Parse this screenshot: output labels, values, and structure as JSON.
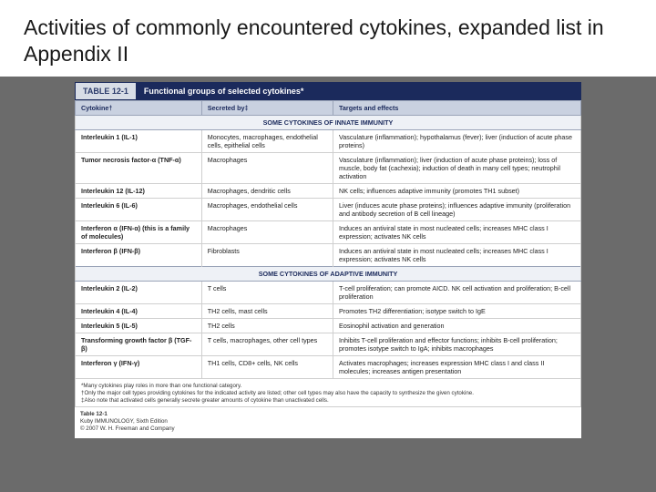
{
  "slide": {
    "title": "Activities of commonly encountered cytokines, expanded list in Appendix II"
  },
  "table": {
    "number": "TABLE 12-1",
    "title": "Functional groups of selected cytokines*",
    "columns": [
      "Cytokine†",
      "Secreted by‡",
      "Targets and effects"
    ],
    "sections": [
      {
        "heading": "SOME CYTOKINES OF INNATE IMMUNITY",
        "rows": [
          {
            "cytokine": "Interleukin 1 (IL-1)",
            "secreted": "Monocytes, macrophages, endothelial cells, epithelial cells",
            "targets": "Vasculature (inflammation); hypothalamus (fever); liver (induction of acute phase proteins)"
          },
          {
            "cytokine": "Tumor necrosis factor-α (TNF-α)",
            "secreted": "Macrophages",
            "targets": "Vasculature (inflammation); liver (induction of acute phase proteins); loss of muscle, body fat (cachexia); induction of death in many cell types; neutrophil activation"
          },
          {
            "cytokine": "Interleukin 12 (IL-12)",
            "secreted": "Macrophages, dendritic cells",
            "targets": "NK cells; influences adaptive immunity (promotes TH1 subset)"
          },
          {
            "cytokine": "Interleukin 6 (IL-6)",
            "secreted": "Macrophages, endothelial cells",
            "targets": "Liver (induces acute phase proteins); influences adaptive immunity (proliferation and antibody secretion of B cell lineage)"
          },
          {
            "cytokine": "Interferon α (IFN-α) (this is a family of molecules)",
            "secreted": "Macrophages",
            "targets": "Induces an antiviral state in most nucleated cells; increases MHC class I expression; activates NK cells"
          },
          {
            "cytokine": "Interferon β (IFN-β)",
            "secreted": "Fibroblasts",
            "targets": "Induces an antiviral state in most nucleated cells; increases MHC class I expression; activates NK cells"
          }
        ]
      },
      {
        "heading": "SOME CYTOKINES OF ADAPTIVE IMMUNITY",
        "rows": [
          {
            "cytokine": "Interleukin 2 (IL-2)",
            "secreted": "T cells",
            "targets": "T-cell proliferation; can promote AICD. NK cell activation and proliferation; B-cell proliferation"
          },
          {
            "cytokine": "Interleukin 4 (IL-4)",
            "secreted": "TH2 cells, mast cells",
            "targets": "Promotes TH2 differentiation; isotype switch to IgE"
          },
          {
            "cytokine": "Interleukin 5 (IL-5)",
            "secreted": "TH2 cells",
            "targets": "Eosinophil activation and generation"
          },
          {
            "cytokine": "Transforming growth factor β (TGF-β)",
            "secreted": "T cells, macrophages, other cell types",
            "targets": "Inhibits T-cell proliferation and effector functions; inhibits B-cell proliferation; promotes isotype switch to IgA; inhibits macrophages"
          },
          {
            "cytokine": "Interferon γ (IFN-γ)",
            "secreted": "TH1 cells, CD8+ cells, NK cells",
            "targets": "Activates macrophages; increases expression MHC class I and class II molecules; increases antigen presentation"
          }
        ]
      }
    ],
    "footnotes": [
      "*Many cytokines play roles in more than one functional category.",
      "†Only the major cell types providing cytokines for the indicated activity are listed; other cell types may also have the capacity to synthesize the given cytokine.",
      "‡Also note that activated cells generally secrete greater amounts of cytokine than unactivated cells."
    ],
    "caption_label": "Table 12-1",
    "caption_source": "Kuby IMMUNOLOGY, Sixth Edition",
    "caption_copyright": "© 2007 W. H. Freeman and Company"
  }
}
